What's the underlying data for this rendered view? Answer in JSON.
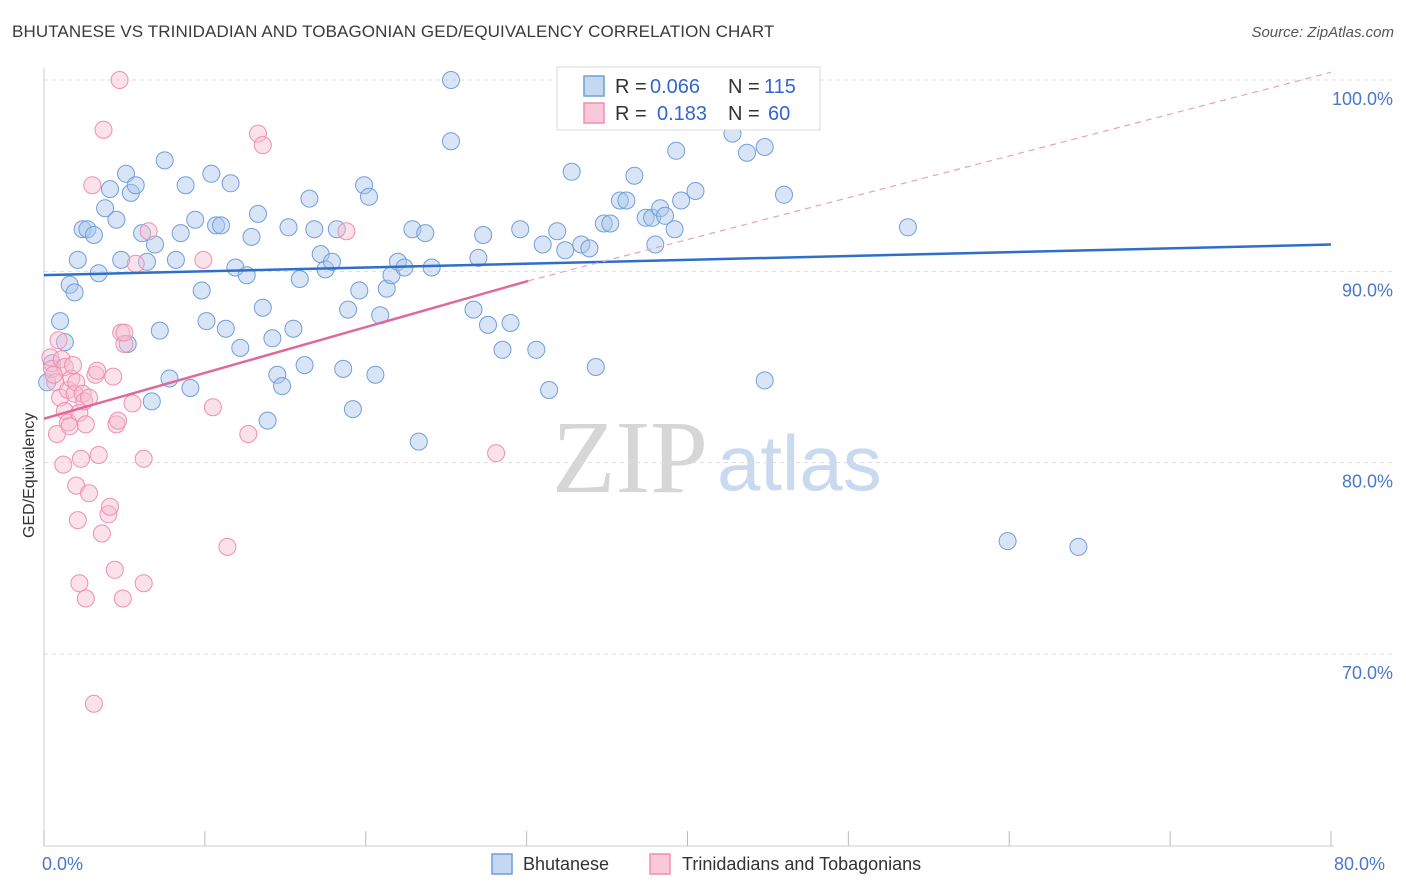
{
  "title": "BHUTANESE VS TRINIDADIAN AND TOBAGONIAN GED/EQUIVALENCY CORRELATION CHART",
  "source": "Source: ZipAtlas.com",
  "watermark": {
    "zip": "ZIP",
    "atlas": "atlas"
  },
  "legend_top": [
    {
      "r_label": "R =",
      "r_value": "0.066",
      "n_label": "N =",
      "n_value": "115"
    },
    {
      "r_label": "R =",
      "r_value": "0.183",
      "n_label": "N =",
      "n_value": "60"
    }
  ],
  "legend_bottom": [
    "Bhutanese",
    "Trinidadians and Tobagonians"
  ],
  "chart_data": {
    "type": "scatter",
    "title": "BHUTANESE VS TRINIDADIAN AND TOBAGONIAN GED/EQUIVALENCY CORRELATION CHART",
    "xlabel": "",
    "ylabel": "GED/Equivalency",
    "xlim": [
      0,
      80
    ],
    "ylim": [
      60,
      102
    ],
    "x_tick_labels": [
      "0.0%",
      "80.0%"
    ],
    "y_tick_labels": [
      "100.0%",
      "90.0%",
      "80.0%",
      "70.0%"
    ],
    "y_tick_values": [
      100,
      90,
      80,
      70
    ],
    "colors": {
      "blue": "#6f9fdb",
      "blue_line": "#2f6fc9",
      "pink": "#f08fb0",
      "pink_line": "#e0689a"
    },
    "series": [
      {
        "name": "Bhutanese",
        "color": "#6f9fdb",
        "trend": {
          "x": [
            0,
            80
          ],
          "y": [
            89.8,
            91.4
          ]
        },
        "points": [
          [
            0.2,
            84.2
          ],
          [
            0.5,
            85.2
          ],
          [
            1.0,
            87.4
          ],
          [
            1.3,
            86.3
          ],
          [
            1.6,
            89.3
          ],
          [
            1.9,
            88.9
          ],
          [
            2.1,
            90.6
          ],
          [
            2.4,
            92.2
          ],
          [
            2.7,
            92.2
          ],
          [
            3.1,
            91.9
          ],
          [
            3.4,
            89.9
          ],
          [
            3.8,
            93.3
          ],
          [
            4.1,
            94.3
          ],
          [
            4.5,
            92.7
          ],
          [
            4.8,
            90.6
          ],
          [
            5.1,
            95.1
          ],
          [
            5.4,
            94.1
          ],
          [
            5.7,
            94.5
          ],
          [
            6.1,
            92.0
          ],
          [
            6.4,
            90.5
          ],
          [
            6.7,
            83.2
          ],
          [
            6.9,
            91.4
          ],
          [
            7.2,
            86.9
          ],
          [
            7.5,
            95.8
          ],
          [
            7.8,
            84.4
          ],
          [
            8.2,
            90.6
          ],
          [
            8.5,
            92.0
          ],
          [
            8.8,
            94.5
          ],
          [
            9.1,
            83.9
          ],
          [
            9.4,
            92.7
          ],
          [
            9.8,
            89.0
          ],
          [
            10.1,
            87.4
          ],
          [
            10.4,
            95.1
          ],
          [
            10.7,
            92.4
          ],
          [
            11.0,
            92.4
          ],
          [
            11.3,
            87.0
          ],
          [
            11.6,
            94.6
          ],
          [
            11.9,
            90.2
          ],
          [
            12.2,
            86.0
          ],
          [
            12.6,
            89.8
          ],
          [
            12.9,
            91.8
          ],
          [
            13.3,
            93.0
          ],
          [
            13.6,
            88.1
          ],
          [
            13.9,
            82.2
          ],
          [
            14.2,
            86.5
          ],
          [
            14.5,
            84.6
          ],
          [
            14.8,
            84.0
          ],
          [
            15.2,
            92.3
          ],
          [
            15.5,
            87.0
          ],
          [
            15.9,
            89.6
          ],
          [
            16.2,
            85.1
          ],
          [
            16.5,
            93.8
          ],
          [
            16.8,
            92.2
          ],
          [
            17.2,
            90.9
          ],
          [
            17.5,
            90.1
          ],
          [
            17.9,
            90.5
          ],
          [
            18.2,
            92.2
          ],
          [
            18.6,
            84.9
          ],
          [
            18.9,
            88.0
          ],
          [
            19.2,
            82.8
          ],
          [
            19.6,
            89.0
          ],
          [
            19.9,
            94.5
          ],
          [
            20.2,
            93.9
          ],
          [
            20.6,
            84.6
          ],
          [
            20.9,
            87.7
          ],
          [
            21.3,
            89.1
          ],
          [
            21.6,
            89.8
          ],
          [
            22.0,
            90.5
          ],
          [
            22.4,
            90.2
          ],
          [
            22.9,
            92.2
          ],
          [
            23.3,
            81.1
          ],
          [
            23.7,
            92.0
          ],
          [
            24.1,
            90.2
          ],
          [
            25.3,
            100.0
          ],
          [
            25.3,
            96.8
          ],
          [
            26.7,
            88.0
          ],
          [
            27.0,
            90.7
          ],
          [
            27.3,
            91.9
          ],
          [
            27.6,
            87.2
          ],
          [
            28.5,
            85.9
          ],
          [
            29.0,
            87.3
          ],
          [
            29.6,
            92.2
          ],
          [
            30.6,
            85.9
          ],
          [
            31.0,
            91.4
          ],
          [
            31.4,
            83.8
          ],
          [
            31.9,
            92.1
          ],
          [
            32.4,
            91.1
          ],
          [
            32.8,
            95.2
          ],
          [
            33.4,
            91.4
          ],
          [
            33.9,
            91.2
          ],
          [
            34.3,
            85.0
          ],
          [
            34.8,
            92.5
          ],
          [
            35.2,
            92.5
          ],
          [
            35.8,
            93.7
          ],
          [
            36.2,
            93.7
          ],
          [
            36.7,
            95.0
          ],
          [
            37.4,
            92.8
          ],
          [
            37.8,
            92.8
          ],
          [
            38.0,
            91.4
          ],
          [
            38.3,
            93.3
          ],
          [
            38.6,
            92.9
          ],
          [
            39.2,
            92.2
          ],
          [
            39.3,
            96.3
          ],
          [
            39.6,
            93.7
          ],
          [
            40.5,
            94.2
          ],
          [
            42.8,
            97.2
          ],
          [
            42.9,
            100.0
          ],
          [
            43.7,
            96.2
          ],
          [
            44.8,
            84.3
          ],
          [
            44.8,
            96.5
          ],
          [
            46.0,
            94.0
          ],
          [
            53.7,
            92.3
          ],
          [
            59.9,
            75.9
          ],
          [
            64.3,
            75.6
          ],
          [
            5.2,
            86.2
          ]
        ]
      },
      {
        "name": "Trinidadians and Tobagonians",
        "color": "#f08fb0",
        "trend": {
          "x": [
            0,
            30.1
          ],
          "y": [
            82.3,
            89.5
          ]
        },
        "trend_dashed": {
          "x": [
            30.1,
            80
          ],
          "y": [
            89.5,
            100.4
          ]
        },
        "points": [
          [
            0.4,
            85.5
          ],
          [
            0.5,
            84.9
          ],
          [
            0.7,
            84.2
          ],
          [
            0.8,
            81.5
          ],
          [
            0.9,
            86.4
          ],
          [
            1.0,
            83.4
          ],
          [
            1.1,
            85.4
          ],
          [
            1.2,
            79.9
          ],
          [
            1.3,
            85.0
          ],
          [
            1.3,
            82.7
          ],
          [
            1.5,
            82.1
          ],
          [
            1.5,
            83.8
          ],
          [
            1.6,
            81.9
          ],
          [
            1.7,
            84.4
          ],
          [
            1.8,
            85.1
          ],
          [
            1.9,
            83.6
          ],
          [
            2.0,
            84.2
          ],
          [
            2.0,
            78.8
          ],
          [
            2.1,
            77.0
          ],
          [
            2.2,
            82.6
          ],
          [
            2.2,
            73.7
          ],
          [
            2.3,
            80.2
          ],
          [
            2.4,
            83.6
          ],
          [
            2.5,
            83.2
          ],
          [
            2.6,
            72.9
          ],
          [
            2.6,
            82.0
          ],
          [
            2.8,
            83.4
          ],
          [
            2.8,
            78.4
          ],
          [
            3.0,
            94.5
          ],
          [
            3.1,
            67.4
          ],
          [
            3.2,
            84.6
          ],
          [
            3.3,
            84.8
          ],
          [
            3.4,
            80.4
          ],
          [
            3.6,
            76.3
          ],
          [
            3.7,
            97.4
          ],
          [
            4.0,
            77.3
          ],
          [
            4.1,
            77.7
          ],
          [
            4.3,
            84.5
          ],
          [
            4.4,
            74.4
          ],
          [
            4.5,
            82.0
          ],
          [
            4.6,
            82.2
          ],
          [
            4.7,
            100.0
          ],
          [
            4.8,
            86.8
          ],
          [
            4.9,
            72.9
          ],
          [
            5.0,
            86.2
          ],
          [
            5.0,
            86.8
          ],
          [
            5.5,
            83.1
          ],
          [
            5.7,
            90.4
          ],
          [
            6.2,
            80.2
          ],
          [
            6.2,
            73.7
          ],
          [
            6.5,
            92.1
          ],
          [
            9.9,
            90.6
          ],
          [
            10.5,
            82.9
          ],
          [
            11.4,
            75.6
          ],
          [
            12.7,
            81.5
          ],
          [
            13.3,
            97.2
          ],
          [
            13.6,
            96.6
          ],
          [
            18.8,
            92.1
          ],
          [
            28.1,
            80.5
          ],
          [
            0.6,
            84.6
          ]
        ]
      }
    ]
  }
}
